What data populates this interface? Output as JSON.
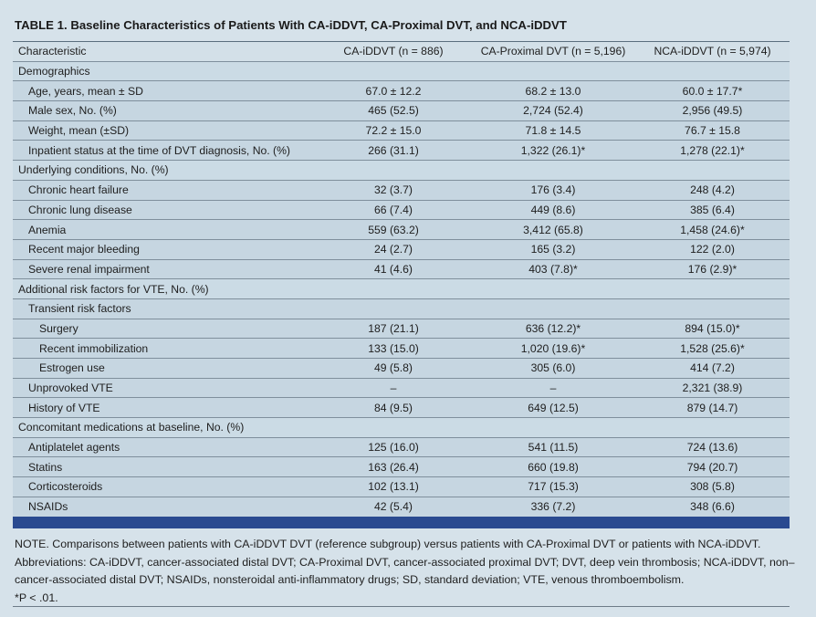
{
  "title": {
    "label": "TABLE 1.",
    "text": "Baseline Characteristics of Patients With CA-iDDVT, CA-Proximal DVT, and NCA-iDDVT"
  },
  "table": {
    "headers": [
      "Characteristic",
      "CA-iDDVT (n = 886)",
      "CA-Proximal DVT (n = 5,196)",
      "NCA-iDDVT (n = 5,974)"
    ],
    "rows": [
      {
        "kind": "section",
        "label": "Demographics"
      },
      {
        "kind": "row",
        "indent": 1,
        "label": "Age, years, mean ± SD",
        "values": [
          "67.0 ± 12.2",
          "68.2 ± 13.0",
          "60.0 ± 17.7*"
        ]
      },
      {
        "kind": "row",
        "indent": 1,
        "label": "Male sex, No. (%)",
        "values": [
          "465 (52.5)",
          "2,724 (52.4)",
          "2,956 (49.5)"
        ]
      },
      {
        "kind": "row",
        "indent": 1,
        "label": "Weight, mean (±SD)",
        "values": [
          "72.2 ± 15.0",
          "71.8 ± 14.5",
          "76.7 ± 15.8"
        ]
      },
      {
        "kind": "row",
        "indent": 1,
        "label": "Inpatient status at the time of DVT diagnosis, No. (%)",
        "values": [
          "266 (31.1)",
          "1,322 (26.1)*",
          "1,278 (22.1)*"
        ]
      },
      {
        "kind": "section",
        "label": "Underlying conditions, No. (%)"
      },
      {
        "kind": "row",
        "indent": 1,
        "label": "Chronic heart failure",
        "values": [
          "32 (3.7)",
          "176 (3.4)",
          "248 (4.2)"
        ]
      },
      {
        "kind": "row",
        "indent": 1,
        "label": "Chronic lung disease",
        "values": [
          "66 (7.4)",
          "449 (8.6)",
          "385 (6.4)"
        ]
      },
      {
        "kind": "row",
        "indent": 1,
        "label": "Anemia",
        "values": [
          "559 (63.2)",
          "3,412 (65.8)",
          "1,458 (24.6)*"
        ]
      },
      {
        "kind": "row",
        "indent": 1,
        "label": "Recent major bleeding",
        "values": [
          "24 (2.7)",
          "165 (3.2)",
          "122 (2.0)"
        ]
      },
      {
        "kind": "row",
        "indent": 1,
        "label": "Severe renal impairment",
        "values": [
          "41 (4.6)",
          "403 (7.8)*",
          "176 (2.9)*"
        ]
      },
      {
        "kind": "section",
        "label": "Additional risk factors for VTE, No. (%)"
      },
      {
        "kind": "row",
        "indent": 1,
        "label": "Transient risk factors",
        "values": [
          "",
          "",
          ""
        ]
      },
      {
        "kind": "row",
        "indent": 2,
        "label": "Surgery",
        "values": [
          "187 (21.1)",
          "636 (12.2)*",
          "894 (15.0)*"
        ]
      },
      {
        "kind": "row",
        "indent": 2,
        "label": "Recent immobilization",
        "values": [
          "133 (15.0)",
          "1,020 (19.6)*",
          "1,528 (25.6)*"
        ]
      },
      {
        "kind": "row",
        "indent": 2,
        "label": "Estrogen use",
        "values": [
          "49 (5.8)",
          "305 (6.0)",
          "414 (7.2)"
        ]
      },
      {
        "kind": "row",
        "indent": 1,
        "label": "Unprovoked VTE",
        "values": [
          "–",
          "–",
          "2,321 (38.9)"
        ]
      },
      {
        "kind": "row",
        "indent": 1,
        "label": "History of VTE",
        "values": [
          "84 (9.5)",
          "649 (12.5)",
          "879 (14.7)"
        ]
      },
      {
        "kind": "section",
        "label": "Concomitant medications at baseline, No. (%)"
      },
      {
        "kind": "row",
        "indent": 1,
        "label": "Antiplatelet agents",
        "values": [
          "125 (16.0)",
          "541 (11.5)",
          "724 (13.6)"
        ]
      },
      {
        "kind": "row",
        "indent": 1,
        "label": "Statins",
        "values": [
          "163 (26.4)",
          "660 (19.8)",
          "794 (20.7)"
        ]
      },
      {
        "kind": "row",
        "indent": 1,
        "label": "Corticosteroids",
        "values": [
          "102 (13.1)",
          "717 (15.3)",
          "308 (5.8)"
        ]
      },
      {
        "kind": "row",
        "indent": 1,
        "label": "NSAIDs",
        "values": [
          "42 (5.4)",
          "336 (7.2)",
          "348 (6.6)"
        ]
      }
    ]
  },
  "notes": [
    "NOTE. Comparisons between patients with CA-iDDVT DVT (reference subgroup) versus patients with CA-Proximal DVT or patients with NCA-iDDVT.",
    "Abbreviations: CA-iDDVT, cancer-associated distal DVT; CA-Proximal DVT, cancer-associated proximal DVT; DVT, deep vein thrombosis; NCA-iDDVT, non–cancer-associated distal DVT; NSAIDs, nonsteroidal anti-inflammatory drugs; SD, standard deviation; VTE, venous thromboembolism.",
    "*P < .01."
  ],
  "colors": {
    "accent_bar": "#2a4a90",
    "background": "#d6e2ea"
  }
}
